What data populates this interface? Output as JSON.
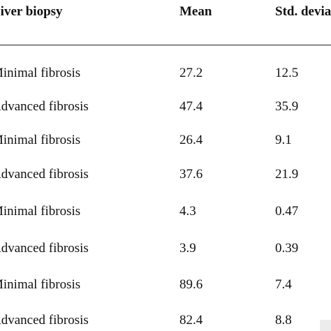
{
  "table": {
    "headers": [
      "Liver biopsy",
      "Mean",
      "Std. deviation"
    ],
    "rows": [
      {
        "label": "Minimal fibrosis",
        "mean": "27.2",
        "sd": "12.5"
      },
      {
        "label": "Advanced fibrosis",
        "mean": "47.4",
        "sd": "35.9"
      },
      {
        "label": "Minimal fibrosis",
        "mean": "26.4",
        "sd": "9.1"
      },
      {
        "label": "Advanced fibrosis",
        "mean": "37.6",
        "sd": "21.9"
      },
      {
        "label": "Minimal fibrosis",
        "mean": "4.3",
        "sd": "0.47"
      },
      {
        "label": "Advanced fibrosis",
        "mean": "3.9",
        "sd": "0.39"
      },
      {
        "label": "Minimal fibrosis",
        "mean": "89.6",
        "sd": "7.4"
      },
      {
        "label": "Advanced fibrosis",
        "mean": "82.4",
        "sd": "8.8"
      }
    ]
  }
}
